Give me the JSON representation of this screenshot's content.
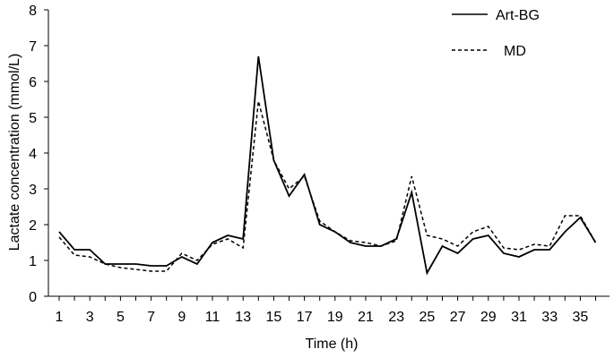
{
  "chart_data": {
    "type": "line",
    "title": "",
    "xlabel": "Time (h)",
    "ylabel": "Lactate concentration (mmol/L)",
    "ylim": [
      0,
      8
    ],
    "yticks": [
      0,
      1,
      2,
      3,
      4,
      5,
      6,
      7,
      8
    ],
    "xlim": [
      1,
      36
    ],
    "xtick_labels": [
      1,
      3,
      5,
      7,
      9,
      11,
      13,
      15,
      17,
      19,
      21,
      23,
      25,
      27,
      29,
      31,
      33,
      35
    ],
    "grid": false,
    "legend_position": "top-right",
    "x": [
      1,
      2,
      3,
      4,
      5,
      6,
      7,
      8,
      9,
      10,
      11,
      12,
      13,
      14,
      15,
      16,
      17,
      18,
      19,
      20,
      21,
      22,
      23,
      24,
      25,
      26,
      27,
      28,
      29,
      30,
      31,
      32,
      33,
      34,
      35,
      36
    ],
    "series": [
      {
        "name": "Art-BG",
        "style": "solid",
        "color": "#000000",
        "values": [
          1.8,
          1.3,
          1.3,
          0.9,
          0.9,
          0.9,
          0.85,
          0.85,
          1.1,
          0.9,
          1.5,
          1.7,
          1.6,
          6.7,
          3.8,
          2.8,
          3.4,
          2.0,
          1.8,
          1.5,
          1.4,
          1.4,
          1.6,
          2.9,
          0.65,
          1.4,
          1.2,
          1.6,
          1.7,
          1.2,
          1.1,
          1.3,
          1.3,
          1.8,
          2.2,
          1.5
        ]
      },
      {
        "name": "MD",
        "style": "dashed",
        "color": "#000000",
        "values": [
          1.65,
          1.15,
          1.1,
          0.9,
          0.8,
          0.75,
          0.7,
          0.7,
          1.2,
          1.0,
          1.45,
          1.6,
          1.35,
          5.45,
          3.8,
          3.0,
          3.35,
          2.1,
          1.8,
          1.55,
          1.5,
          1.4,
          1.55,
          3.35,
          1.7,
          1.6,
          1.4,
          1.8,
          1.95,
          1.35,
          1.3,
          1.45,
          1.4,
          2.25,
          2.25,
          1.5
        ]
      }
    ]
  }
}
